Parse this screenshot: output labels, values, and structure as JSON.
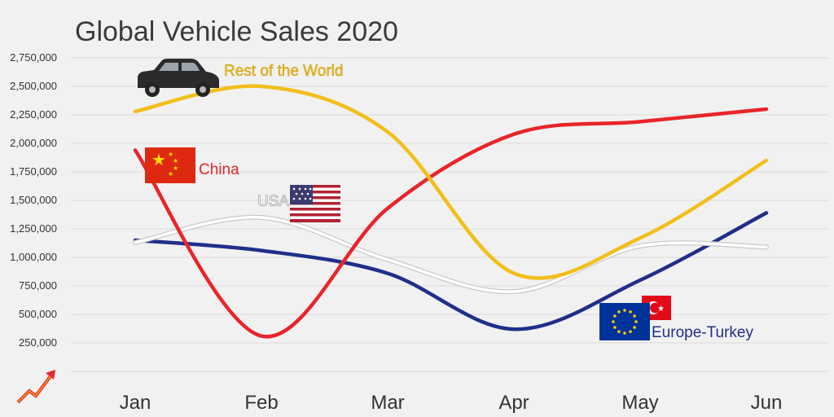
{
  "chart_data": {
    "type": "line",
    "title": "Global Vehicle Sales 2020",
    "xlabel": "",
    "ylabel": "",
    "categories": [
      "Jan",
      "Feb",
      "Mar",
      "Apr",
      "May",
      "Jun"
    ],
    "ylim": [
      0,
      2750000
    ],
    "yticks": [
      "250,000",
      "500,000",
      "750,000",
      "1,000,000",
      "1,250,000",
      "1,500,000",
      "1,750,000",
      "2,000,000",
      "2,250,000",
      "2,500,000",
      "2,750,000"
    ],
    "ytick_values": [
      250000,
      500000,
      750000,
      1000000,
      1250000,
      1500000,
      1750000,
      2000000,
      2250000,
      2500000,
      2750000
    ],
    "grid": true,
    "series": [
      {
        "name": "Rest of the World",
        "color": "#f2be1a",
        "icon": "car-icon",
        "values": [
          2280000,
          2500000,
          2100000,
          860000,
          1170000,
          1850000
        ]
      },
      {
        "name": "China",
        "color": "#e8252a",
        "icon": "china-flag-icon",
        "values": [
          1940000,
          310000,
          1430000,
          2080000,
          2190000,
          2300000
        ]
      },
      {
        "name": "USA",
        "color": "#ffffff",
        "icon": "usa-flag-icon",
        "values": [
          1130000,
          1350000,
          980000,
          700000,
          1100000,
          1090000
        ]
      },
      {
        "name": "Europe-Turkey",
        "color": "#1f2f8a",
        "icon": "eu-turkey-flag-icon",
        "values": [
          1150000,
          1060000,
          860000,
          370000,
          800000,
          1390000
        ]
      }
    ]
  },
  "logo": {
    "icon": "growth-arrow-logo-icon"
  }
}
